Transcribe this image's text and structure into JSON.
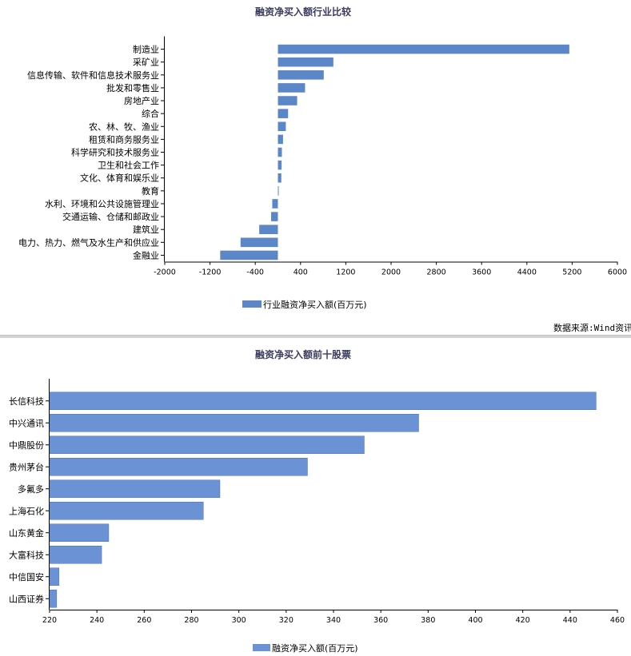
{
  "chart_data": [
    {
      "type": "bar",
      "orientation": "horizontal",
      "title": "融资净买入额行业比较",
      "categories": [
        "制造业",
        "采矿业",
        "信息传输、软件和信息技术服务业",
        "批发和零售业",
        "房地产业",
        "综合",
        "农、林、牧、渔业",
        "租赁和商务服务业",
        "科学研究和技术服务业",
        "卫生和社会工作",
        "文化、体育和娱乐业",
        "教育",
        "水利、环境和公共设施管理业",
        "交通运输、仓储和邮政业",
        "建筑业",
        "电力、热力、燃气及水生产和供应业",
        "金融业"
      ],
      "series": [
        {
          "name": "行业融资净买入额(百万元)",
          "values": [
            5150,
            980,
            810,
            480,
            340,
            180,
            140,
            90,
            70,
            65,
            60,
            5,
            -100,
            -120,
            -330,
            -660,
            -1020
          ],
          "color": "#5b86c8"
        }
      ],
      "xlim": [
        -2000,
        6000
      ],
      "xticks": [
        -2000,
        -1200,
        -400,
        400,
        1200,
        2000,
        2800,
        3600,
        4400,
        5200,
        6000
      ],
      "grid": false,
      "legend_position": "bottom",
      "source": "数据来源:Wind资讯"
    },
    {
      "type": "bar",
      "orientation": "horizontal",
      "title": "融资净买入额前十股票",
      "categories": [
        "长信科技",
        "中兴通讯",
        "中鼎股份",
        "贵州茅台",
        "多氟多",
        "上海石化",
        "山东黄金",
        "大富科技",
        "中信国安",
        "山西证券"
      ],
      "series": [
        {
          "name": "融资净买入额(百万元)",
          "values": [
            451,
            376,
            353,
            329,
            292,
            285,
            245,
            242,
            224,
            223
          ],
          "color": "#6a92d4"
        }
      ],
      "xlim": [
        220,
        460
      ],
      "xticks": [
        220,
        240,
        260,
        280,
        300,
        320,
        340,
        360,
        380,
        400,
        420,
        440,
        460
      ],
      "grid": false,
      "legend_position": "bottom"
    }
  ]
}
